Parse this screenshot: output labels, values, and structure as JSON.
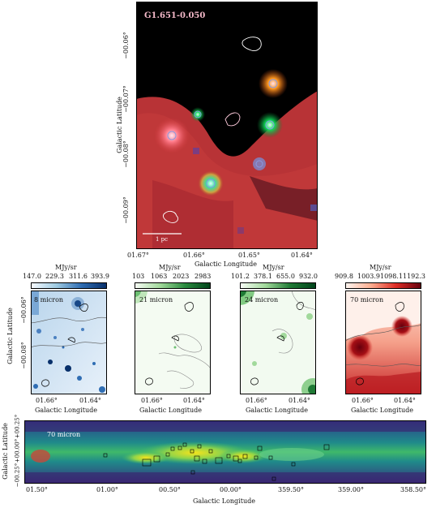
{
  "main_panel": {
    "title": "G1.651-0.050",
    "x_axis_label": "Galactic Longitude",
    "y_axis_label": "Galactic Latitude",
    "x_ticks": [
      "01.67°",
      "01.66°",
      "01.65°",
      "01.64°"
    ],
    "y_ticks": [
      "−00.06°",
      "−00.07°",
      "−00.08°",
      "−00.09°"
    ],
    "scale_bar_label": "1 pc"
  },
  "small_panels": [
    {
      "label": "8 micron",
      "unit": "MJy/sr",
      "cbar_ticks": [
        "147.0",
        "229.3",
        "311.6",
        "393.9"
      ],
      "x_ticks": [
        "01.66°",
        "01.64°"
      ],
      "y_ticks": [
        "−00.06°",
        "−00.08°"
      ],
      "x_axis_label": "Galactic Longitude",
      "y_axis_label": "Galactic Latitude"
    },
    {
      "label": "21 micron",
      "unit": "MJy/sr",
      "cbar_ticks": [
        "103",
        "1063",
        "2023",
        "2983"
      ],
      "x_ticks": [
        "01.66°",
        "01.64°"
      ],
      "x_axis_label": "Galactic Longitude"
    },
    {
      "label": "24 micron",
      "unit": "MJy/sr",
      "cbar_ticks": [
        "101.2",
        "378.1",
        "655.0",
        "932.0"
      ],
      "x_ticks": [
        "01.66°",
        "01.64°"
      ],
      "x_axis_label": "Galactic Longitude"
    },
    {
      "label": "70 micron",
      "unit": "MJy/sr",
      "cbar_ticks": [
        "909.8",
        "1003.9",
        "1098.1",
        "1192.3"
      ],
      "x_ticks": [
        "01.66°",
        "01.64°"
      ],
      "x_axis_label": "Galactic Longitude"
    }
  ],
  "bottom_panel": {
    "label": "70 micron",
    "x_ticks": [
      "01.50°",
      "01.00°",
      "00.50°",
      "00.00°",
      "359.50°",
      "359.00°",
      "358.50°"
    ],
    "y_ticks": [
      "+00.25°",
      "+00.00°",
      "−00.25°"
    ],
    "x_axis_label": "Galactic Longitude",
    "y_axis_label": "Galactic Latitude"
  },
  "colors": {
    "main_bg": "#000000",
    "main_nebula": "#c0383a",
    "panel_8": "#2f6db3",
    "panel_21": "#2a8a3e",
    "panel_24": "#1f7a35",
    "panel_70": "#b8141a",
    "bottom_low": "#3b1f6e",
    "bottom_high": "#f5e31c"
  }
}
